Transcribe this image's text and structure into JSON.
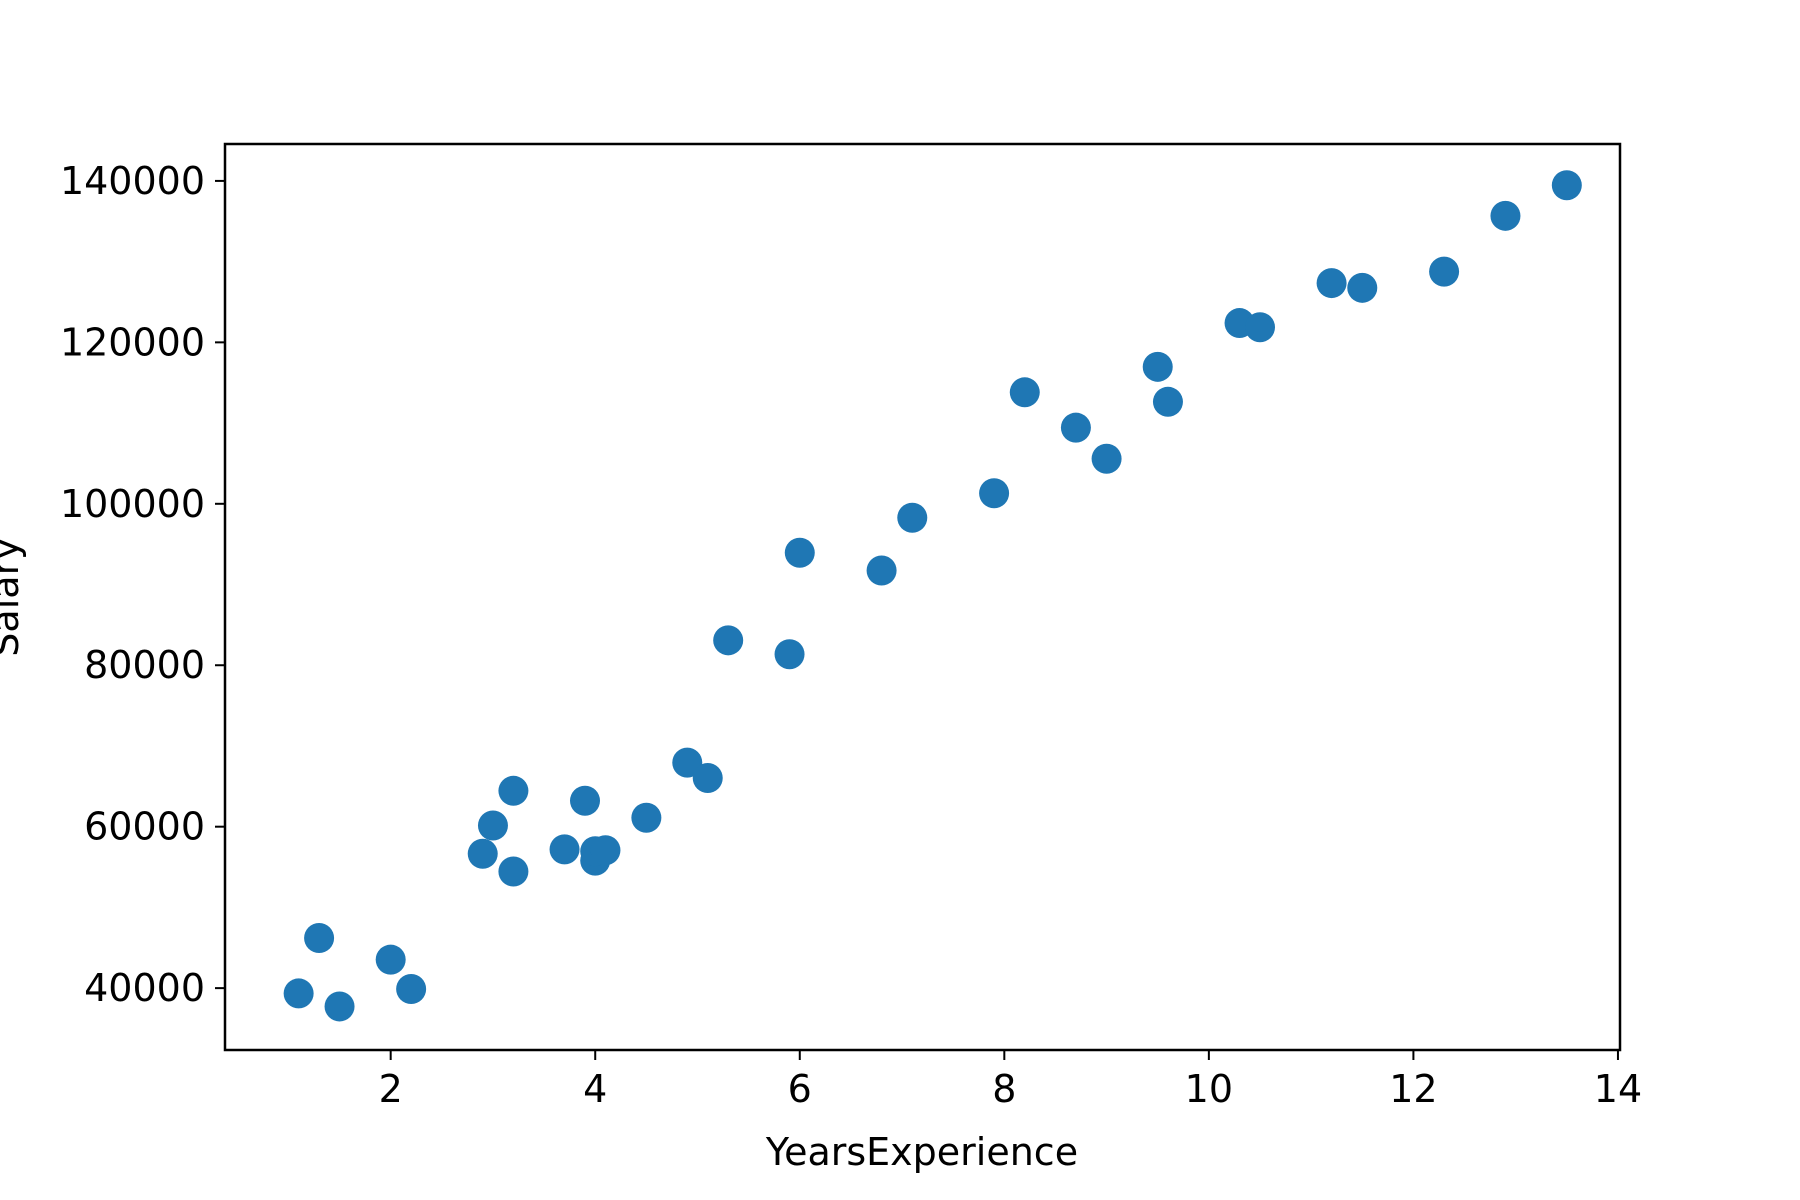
{
  "chart_data": {
    "type": "scatter",
    "title": "",
    "xlabel": "YearsExperience",
    "ylabel": "Salary",
    "xlim": [
      0.38,
      14.02
    ],
    "ylim": [
      32335,
      144573
    ],
    "xticks": [
      2,
      4,
      6,
      8,
      10,
      12,
      14
    ],
    "xtick_labels": [
      "2",
      "4",
      "6",
      "8",
      "10",
      "12",
      "14"
    ],
    "yticks": [
      40000,
      60000,
      80000,
      100000,
      120000,
      140000
    ],
    "ytick_labels": [
      "40000",
      "60000",
      "80000",
      "100000",
      "120000",
      "140000"
    ],
    "grid": false,
    "color": "#1f77b4",
    "points": [
      {
        "x": 1.1,
        "y": 39343
      },
      {
        "x": 1.3,
        "y": 46205
      },
      {
        "x": 1.5,
        "y": 37731
      },
      {
        "x": 2.0,
        "y": 43525
      },
      {
        "x": 2.2,
        "y": 39891
      },
      {
        "x": 2.9,
        "y": 56642
      },
      {
        "x": 3.0,
        "y": 60150
      },
      {
        "x": 3.2,
        "y": 54445
      },
      {
        "x": 3.2,
        "y": 64445
      },
      {
        "x": 3.7,
        "y": 57189
      },
      {
        "x": 3.9,
        "y": 63218
      },
      {
        "x": 4.0,
        "y": 55794
      },
      {
        "x": 4.0,
        "y": 56957
      },
      {
        "x": 4.1,
        "y": 57081
      },
      {
        "x": 4.5,
        "y": 61111
      },
      {
        "x": 4.9,
        "y": 67938
      },
      {
        "x": 5.1,
        "y": 66029
      },
      {
        "x": 5.3,
        "y": 83088
      },
      {
        "x": 5.9,
        "y": 81363
      },
      {
        "x": 6.0,
        "y": 93940
      },
      {
        "x": 6.8,
        "y": 91738
      },
      {
        "x": 7.1,
        "y": 98273
      },
      {
        "x": 7.9,
        "y": 101302
      },
      {
        "x": 8.2,
        "y": 113812
      },
      {
        "x": 8.7,
        "y": 109431
      },
      {
        "x": 9.0,
        "y": 105582
      },
      {
        "x": 9.5,
        "y": 116969
      },
      {
        "x": 9.6,
        "y": 112635
      },
      {
        "x": 10.3,
        "y": 122391
      },
      {
        "x": 10.5,
        "y": 121872
      },
      {
        "x": 11.2,
        "y": 127345
      },
      {
        "x": 11.5,
        "y": 126756
      },
      {
        "x": 12.3,
        "y": 128765
      },
      {
        "x": 12.9,
        "y": 135675
      },
      {
        "x": 13.5,
        "y": 139465
      }
    ]
  }
}
